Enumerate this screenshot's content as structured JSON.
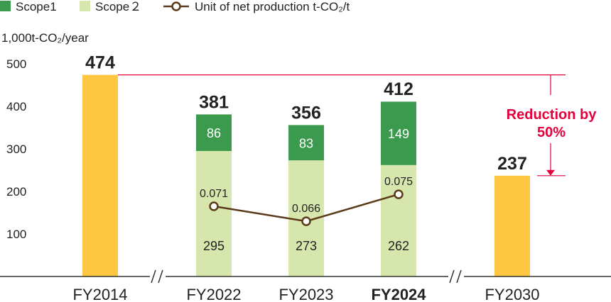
{
  "chart_data": {
    "type": "bar",
    "ylabel": "1,000t-CO₂/year",
    "ylim": [
      0,
      500
    ],
    "yticks": [
      100,
      200,
      300,
      400,
      500
    ],
    "grid": false,
    "legend_position": "top-left",
    "legend": [
      {
        "label": "Scope1",
        "kind": "square",
        "color": "#3c9a4e"
      },
      {
        "label": "Scope２",
        "kind": "square",
        "color": "#d7e6ad"
      },
      {
        "label": "Unit of net production t-CO₂/t",
        "kind": "line-marker",
        "color": "#5b3a1a"
      }
    ],
    "categories": [
      "FY2014",
      "FY2022",
      "FY2023",
      "FY2024",
      "FY2030"
    ],
    "highlight_category": "FY2024",
    "axis_break_after": [
      "FY2014",
      "FY2024"
    ],
    "totals": [
      474,
      381,
      356,
      412,
      237
    ],
    "series": [
      {
        "name": "Scope1",
        "color": "#3c9a4e",
        "values": [
          null,
          86,
          83,
          149,
          null
        ]
      },
      {
        "name": "Scope２",
        "color": "#d7e6ad",
        "values": [
          null,
          295,
          273,
          262,
          null
        ]
      },
      {
        "name": "Unit of net production t-CO₂/t",
        "color": "#5b3a1a",
        "type": "line",
        "values": [
          null,
          0.071,
          0.066,
          0.075,
          null
        ],
        "value_labels": [
          "",
          "0.071",
          "0.066",
          "0.075",
          ""
        ]
      }
    ],
    "total_only_color": "#fdc741",
    "annotation": {
      "text_line1": "Reduction by",
      "text_line2": "50%",
      "color": "#e4003a",
      "from_value": 474,
      "to_value": 237
    }
  }
}
